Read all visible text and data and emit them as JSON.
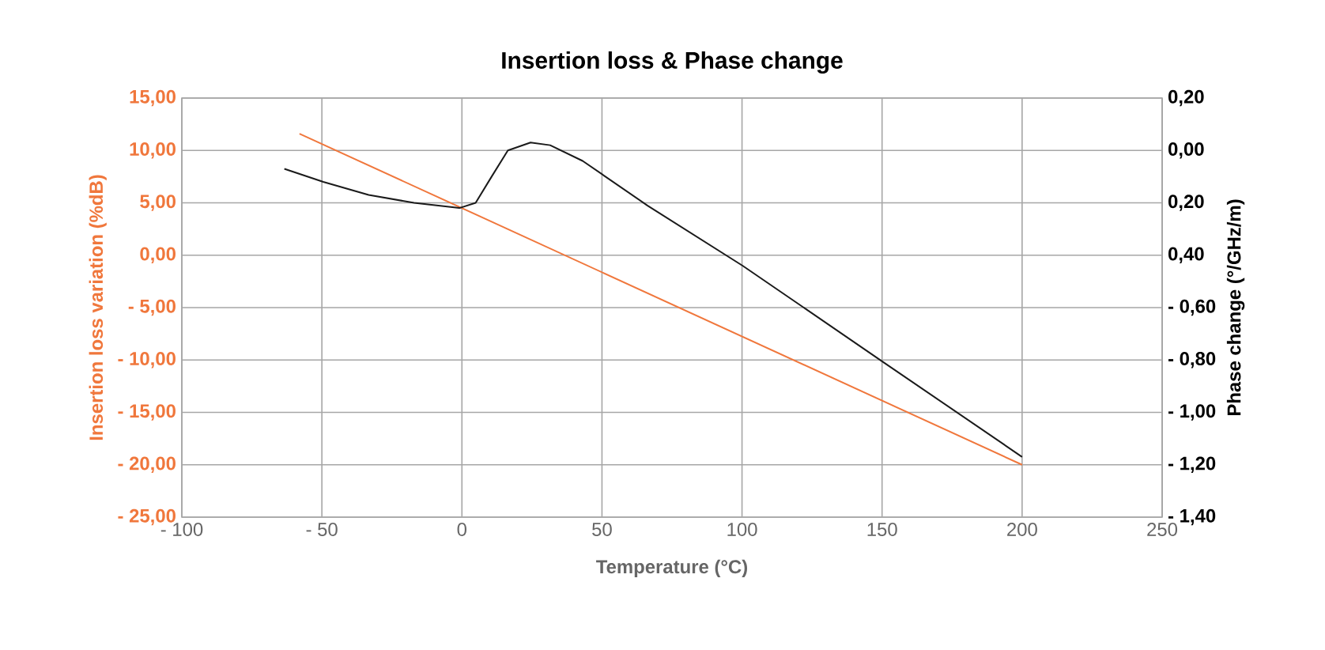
{
  "chart_data": {
    "type": "line",
    "title": "Insertion loss  & Phase change",
    "xlabel": "Temperature (°C)",
    "ylabel": "Insertion loss variation (%dB)",
    "y2label": "Phase change (°/GHz/m)",
    "xlim": [
      -100,
      250
    ],
    "xticks": [
      {
        "value": -100,
        "label": "- 100"
      },
      {
        "value": -50,
        "label": "- 50"
      },
      0,
      50,
      100,
      150,
      200,
      250
    ],
    "ylim": [
      -25,
      15
    ],
    "yticks": [
      {
        "value": -25,
        "label": "- 25,00"
      },
      {
        "value": -20,
        "label": "- 20,00"
      },
      {
        "value": -15,
        "label": "- 15,00"
      },
      {
        "value": -10,
        "label": "- 10,00"
      },
      {
        "value": -5,
        "label": "- 5,00"
      },
      {
        "value": 0,
        "label": "0,00"
      },
      {
        "value": 5,
        "label": "5,00"
      },
      {
        "value": 10,
        "label": "10,00"
      },
      {
        "value": 15,
        "label": "15,00"
      }
    ],
    "y2lim": [
      -1.4,
      0.2
    ],
    "y2ticks": [
      {
        "value": -1.4,
        "label": "- 1,40"
      },
      {
        "value": -1.2,
        "label": "- 1,20"
      },
      {
        "value": -1.0,
        "label": "- 1,00"
      },
      {
        "value": -0.8,
        "label": "- 0,80"
      },
      {
        "value": -0.6,
        "label": "- 0,60"
      },
      {
        "value": -0.4,
        "label": "0,40"
      },
      {
        "value": -0.2,
        "label": "0,20"
      },
      {
        "value": 0.0,
        "label": "0,00"
      },
      {
        "value": 0.2,
        "label": "0,20"
      }
    ],
    "grid": true,
    "series": [
      {
        "color": "#f0773c",
        "x": [
          -58,
          200
        ],
        "values": [
          11.6,
          -20
        ]
      },
      {
        "color": "#1a1a1a",
        "axis": "y2",
        "x": [
          -63.4,
          -49.5,
          -33.3,
          -17.1,
          -0.9,
          4.9,
          10.6,
          16.4,
          24.5,
          31.5,
          43.1,
          66.2,
          100.2,
          150.7,
          200
        ],
        "values": [
          -0.07,
          -0.12,
          -0.17,
          -0.2,
          -0.22,
          -0.2,
          -0.1,
          0.0,
          0.03,
          0.02,
          -0.04,
          -0.21,
          -0.44,
          -0.81,
          -1.17
        ]
      }
    ]
  }
}
